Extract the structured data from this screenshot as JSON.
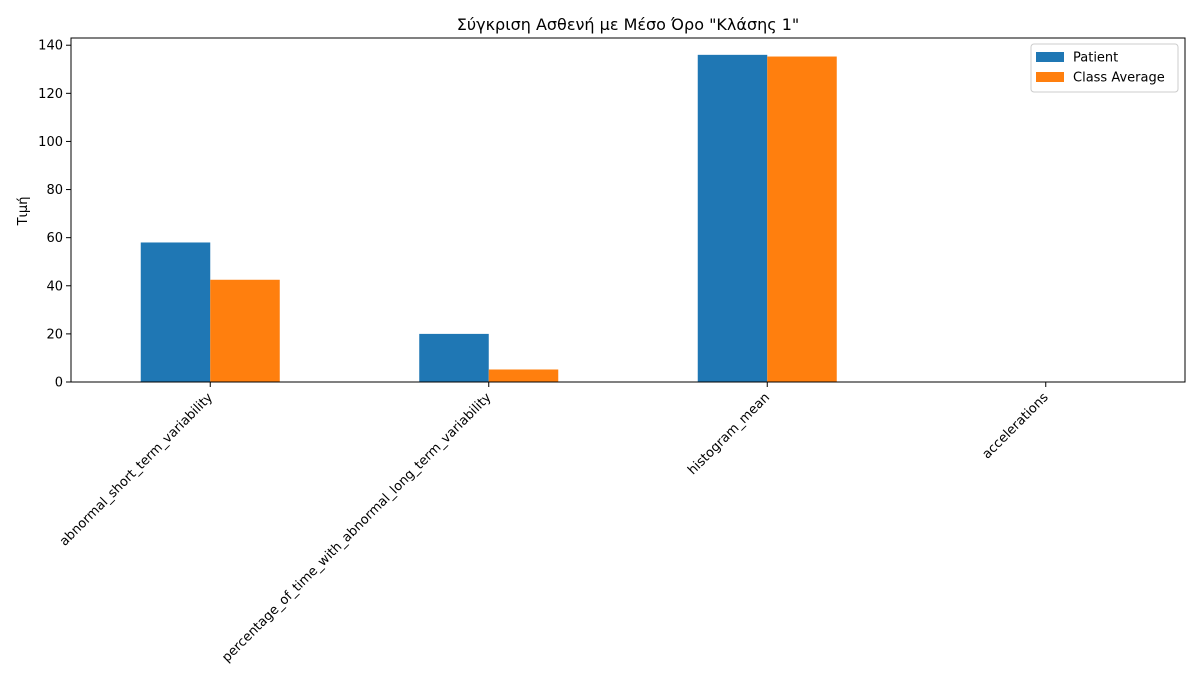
{
  "chart_data": {
    "type": "bar",
    "title": "Σύγκριση Ασθενή με Μέσο Όρο \"Κλάσης 1\"",
    "xlabel": "",
    "ylabel": "Τιμή",
    "categories": [
      "abnormal_short_term_variability",
      "percentage_of_time_with_abnormal_long_term_variability",
      "histogram_mean",
      "accelerations"
    ],
    "series": [
      {
        "name": "Patient",
        "color": "#1f77b4",
        "values": [
          58,
          20,
          136,
          0
        ]
      },
      {
        "name": "Class Average",
        "color": "#ff7f0e",
        "values": [
          42.5,
          5.2,
          135.3,
          0.0
        ]
      }
    ],
    "ylim": [
      0,
      143
    ],
    "yticks": [
      0,
      20,
      40,
      60,
      80,
      100,
      120,
      140
    ],
    "grid": false,
    "legend_position": "top-right"
  }
}
